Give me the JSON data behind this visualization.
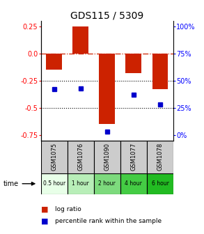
{
  "title": "GDS115 / 5309",
  "samples": [
    "GSM1075",
    "GSM1076",
    "GSM1090",
    "GSM1077",
    "GSM1078"
  ],
  "time_labels": [
    "0.5 hour",
    "1 hour",
    "2 hour",
    "4 hour",
    "6 hour"
  ],
  "time_colors": [
    "#e8ffe8",
    "#b8eeb8",
    "#7dda7d",
    "#44cc44",
    "#22bb22"
  ],
  "log_ratios": [
    -0.15,
    0.25,
    -0.65,
    -0.18,
    -0.33
  ],
  "percentile_ranks": [
    0.42,
    0.43,
    0.03,
    0.37,
    0.28
  ],
  "ylim": [
    -0.8,
    0.3
  ],
  "y_left_ticks": [
    0.25,
    0.0,
    -0.25,
    -0.5,
    -0.75
  ],
  "y_right_ticks": [
    100,
    75,
    50,
    25,
    0
  ],
  "y_right_positions": [
    0.25,
    0.0,
    -0.25,
    -0.5,
    -0.75
  ],
  "bar_color": "#cc2200",
  "point_color": "#0000cc",
  "dotted_lines": [
    -0.25,
    -0.5
  ],
  "legend_bar_label": "log ratio",
  "legend_point_label": "percentile rank within the sample",
  "bar_width": 0.6
}
